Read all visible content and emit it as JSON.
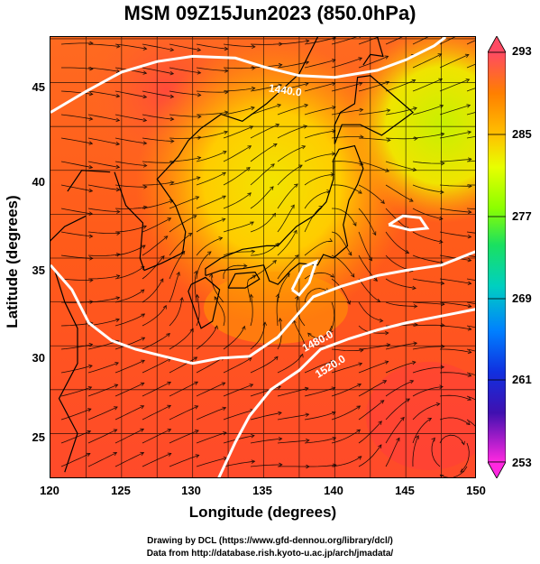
{
  "title": "MSM 09Z15Jun2023 (850.0hPa)",
  "axes": {
    "xlabel": "Longitude (degrees)",
    "ylabel": "Latitude  (degrees)",
    "x_ticks": [
      "120",
      "125",
      "130",
      "135",
      "140",
      "145",
      "150"
    ],
    "y_ticks": [
      "45",
      "40",
      "35",
      "30",
      "25"
    ],
    "x_range": [
      120,
      150
    ],
    "y_range": [
      22.4,
      47.6
    ]
  },
  "colorbar": {
    "ticks": [
      "293",
      "285",
      "277",
      "269",
      "261",
      "253"
    ],
    "range": [
      253,
      293
    ],
    "colors": [
      "#ff4a63",
      "#ff7f00",
      "#ffc000",
      "#e8ff00",
      "#8cff00",
      "#1ae060",
      "#00d0c0",
      "#0080ff",
      "#1030e0",
      "#4010b0",
      "#ff28e0"
    ]
  },
  "contours": [
    {
      "label": "1440.0",
      "color": "#ffffff"
    },
    {
      "label": "1480.0",
      "color": "#ffffff"
    },
    {
      "label": "1520.0",
      "color": "#ffffff"
    }
  ],
  "credits": {
    "line1": "Drawing by DCL (https://www.gfd-dennou.org/library/dcl/)",
    "line2": "Data from http://database.rish.kyoto-u.ac.jp/arch/jmadata/"
  }
}
